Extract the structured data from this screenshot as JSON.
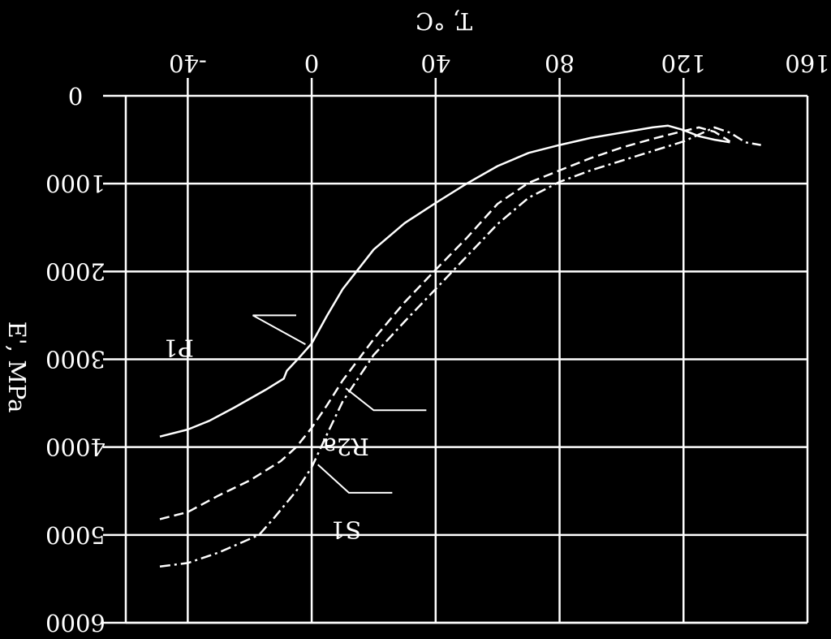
{
  "chart_data": {
    "type": "line",
    "title": "",
    "xlabel": "T, °C",
    "ylabel": "E', MPa",
    "xlim": [
      -60,
      160
    ],
    "ylim": [
      0,
      6000
    ],
    "x_ticks": [
      -40,
      0,
      40,
      80,
      120,
      160
    ],
    "x_tick_labels": [
      "-40",
      "0",
      "40",
      "80",
      "120",
      "160"
    ],
    "y_ticks": [
      0,
      1000,
      2000,
      3000,
      4000,
      5000,
      6000
    ],
    "y_tick_labels": [
      "0",
      "1000",
      "2000",
      "3000",
      "4000",
      "5000",
      "6000"
    ],
    "grid": true,
    "series": [
      {
        "name": "P1",
        "style": "solid",
        "x": [
          -49,
          -40,
          -33,
          -25,
          -15,
          -9,
          -8,
          -4,
          0,
          5,
          10,
          20,
          30,
          40,
          50,
          60,
          70,
          80,
          90,
          100,
          110,
          115,
          120,
          125,
          130,
          135
        ],
        "y": [
          3880,
          3800,
          3700,
          3550,
          3350,
          3220,
          3130,
          2980,
          2820,
          2500,
          2200,
          1750,
          1450,
          1220,
          1000,
          800,
          650,
          560,
          480,
          420,
          360,
          340,
          390,
          460,
          500,
          530
        ]
      },
      {
        "name": "R2a",
        "style": "dashed",
        "x": [
          -49,
          -40,
          -30,
          -20,
          -10,
          -5,
          0,
          5,
          10,
          20,
          30,
          40,
          50,
          60,
          70,
          80,
          90,
          100,
          110,
          120,
          125,
          130,
          135
        ],
        "y": [
          4820,
          4740,
          4550,
          4380,
          4160,
          4000,
          3780,
          3520,
          3240,
          2770,
          2350,
          1980,
          1620,
          1230,
          990,
          850,
          710,
          590,
          490,
          400,
          360,
          410,
          520
        ]
      },
      {
        "name": "S1",
        "style": "dash-dot",
        "x": [
          -49,
          -40,
          -30,
          -17,
          -12,
          -5,
          0,
          5,
          10,
          20,
          30,
          40,
          50,
          60,
          70,
          80,
          90,
          100,
          110,
          120,
          125,
          130,
          135,
          140,
          145
        ],
        "y": [
          5360,
          5320,
          5200,
          5000,
          4800,
          4500,
          4230,
          3850,
          3480,
          2950,
          2570,
          2200,
          1830,
          1460,
          1160,
          980,
          850,
          740,
          630,
          520,
          440,
          360,
          420,
          530,
          560
        ]
      }
    ]
  }
}
